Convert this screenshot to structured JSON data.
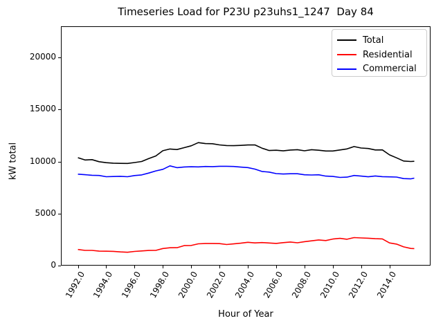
{
  "chart": {
    "title": "Timeseries Load for P23U p23uhs1_1247  Day 84",
    "xlabel": "Hour of Year",
    "ylabel": "kW total",
    "background_color": "#ffffff",
    "axis_color": "#000000",
    "legend_border_color": "#cccccc"
  },
  "chart_data": {
    "type": "line",
    "title": "Timeseries Load for P23U p23uhs1_1247  Day 84",
    "xlabel": "Hour of Year",
    "ylabel": "kW total",
    "xlim": [
      1990.8,
      2016.9
    ],
    "ylim": [
      0,
      23000
    ],
    "grid": false,
    "legend_position": "upper right",
    "x_tick_values": [
      1992,
      1994,
      1996,
      1998,
      2000,
      2002,
      2004,
      2006,
      2008,
      2010,
      2012,
      2014
    ],
    "x_tick_labels": [
      "1992.0",
      "1994.0",
      "1996.0",
      "1998.0",
      "2000.0",
      "2002.0",
      "2004.0",
      "2006.0",
      "2008.0",
      "2010.0",
      "2012.0",
      "2014.0"
    ],
    "y_tick_values": [
      0,
      5000,
      10000,
      15000,
      20000
    ],
    "y_tick_labels": [
      "0",
      "5000",
      "10000",
      "15000",
      "20000"
    ],
    "x": [
      1992,
      1992.5,
      1993,
      1993.5,
      1994,
      1994.5,
      1995,
      1995.5,
      1996,
      1996.5,
      1997,
      1997.5,
      1998,
      1998.5,
      1999,
      1999.5,
      2000,
      2000.5,
      2001,
      2001.5,
      2002,
      2002.5,
      2003,
      2003.5,
      2004,
      2004.5,
      2005,
      2005.5,
      2006,
      2006.5,
      2007,
      2007.5,
      2008,
      2008.5,
      2009,
      2009.5,
      2010,
      2010.5,
      2011,
      2011.5,
      2012,
      2012.5,
      2013,
      2013.5,
      2014,
      2014.5,
      2015,
      2015.5,
      2015.75
    ],
    "series": [
      {
        "name": "Total",
        "color": "#000000",
        "values": [
          10300,
          10200,
          10150,
          9980,
          9900,
          9850,
          9870,
          9850,
          9900,
          10050,
          10300,
          10600,
          11100,
          11200,
          11150,
          11300,
          11450,
          11750,
          11700,
          11650,
          11650,
          11600,
          11550,
          11600,
          11600,
          11550,
          11300,
          11100,
          11050,
          11100,
          11100,
          11150,
          11100,
          11150,
          11100,
          11050,
          10950,
          11100,
          11200,
          11400,
          11350,
          11250,
          11150,
          11050,
          10700,
          10350,
          10100,
          10000,
          9980
        ]
      },
      {
        "name": "Residential",
        "color": "#ff0000",
        "values": [
          1500,
          1450,
          1400,
          1360,
          1330,
          1320,
          1340,
          1330,
          1360,
          1400,
          1430,
          1500,
          1580,
          1650,
          1720,
          1850,
          1950,
          2100,
          2150,
          2100,
          2100,
          2080,
          2100,
          2150,
          2200,
          2180,
          2200,
          2150,
          2150,
          2180,
          2200,
          2250,
          2300,
          2350,
          2400,
          2450,
          2500,
          2550,
          2600,
          2650,
          2700,
          2650,
          2600,
          2500,
          2250,
          2000,
          1750,
          1600,
          1580
        ]
      },
      {
        "name": "Commercial",
        "color": "#0000ff",
        "values": [
          8750,
          8700,
          8650,
          8620,
          8600,
          8580,
          8600,
          8600,
          8620,
          8700,
          8850,
          9050,
          9300,
          9550,
          9450,
          9500,
          9550,
          9550,
          9550,
          9520,
          9500,
          9480,
          9450,
          9400,
          9350,
          9250,
          9100,
          8950,
          8850,
          8820,
          8800,
          8820,
          8800,
          8780,
          8700,
          8600,
          8500,
          8520,
          8550,
          8650,
          8650,
          8600,
          8550,
          8520,
          8500,
          8450,
          8400,
          8350,
          8340
        ]
      }
    ]
  }
}
